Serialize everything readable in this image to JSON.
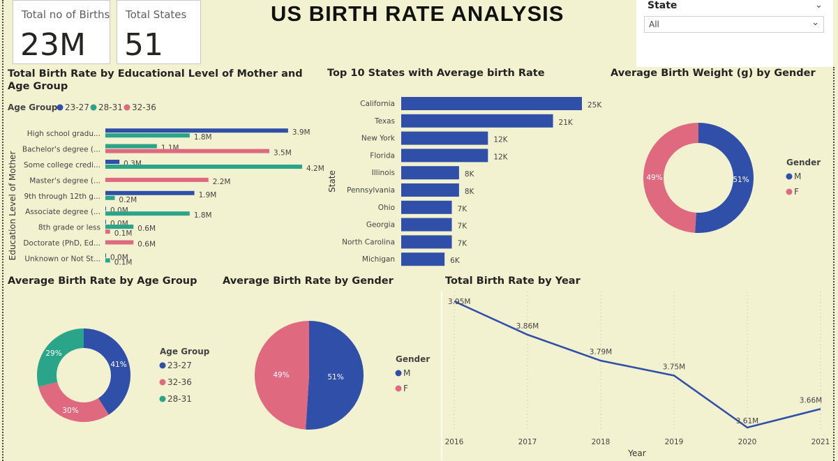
{
  "header": {
    "title": "US BIRTH RATE ANALYSIS"
  },
  "cards": [
    {
      "label": "Total no of Births",
      "value": "23M"
    },
    {
      "label": "Total States",
      "value": "51"
    }
  ],
  "slicer": {
    "title": "State",
    "value": "All"
  },
  "colors": {
    "blue": "#2f4fa8",
    "teal": "#2aa58a",
    "pink": "#df6a80",
    "bg": "#f2f2d0"
  },
  "chart_data": [
    {
      "id": "edu",
      "type": "bar",
      "orientation": "horizontal",
      "title": "Total Birth Rate by Educational Level of Mother and Age Group",
      "title_lines": [
        "Total Birth Rate by Educational Level of Mother and",
        "Age Group"
      ],
      "ylabel": "Education Level of Mother",
      "legend_title": "Age Group",
      "legend": [
        "23-27",
        "28-31",
        "32-36"
      ],
      "categories": [
        "High school gradu...",
        "Bachelor's degree (...",
        "Some college credi...",
        "Master's degree (...",
        "9th through 12th g...",
        "Associate degree (...",
        "8th grade or less",
        "Doctorate (PhD, Ed...",
        "Unknown or Not St..."
      ],
      "series": [
        {
          "name": "23-27",
          "values": [
            3.9,
            0,
            0.3,
            0,
            1.9,
            0.0,
            0.0,
            0,
            0.0
          ],
          "labels": [
            "3.9M",
            "",
            "0.3M",
            "",
            "1.9M",
            "0.0M",
            "0.0M",
            "",
            "0.0M"
          ]
        },
        {
          "name": "28-31",
          "values": [
            1.8,
            1.1,
            4.2,
            0,
            0.2,
            1.8,
            0.6,
            0,
            0.1
          ],
          "labels": [
            "1.8M",
            "1.1M",
            "4.2M",
            "",
            "0.2M",
            "1.8M",
            "0.6M",
            "",
            "0.1M"
          ]
        },
        {
          "name": "32-36",
          "values": [
            0,
            3.5,
            0,
            2.2,
            0,
            0,
            0.1,
            0.6,
            0
          ],
          "labels": [
            "",
            "3.5M",
            "",
            "2.2M",
            "",
            "",
            "0.1M",
            "0.6M",
            ""
          ]
        }
      ],
      "xlim": [
        0,
        4.2
      ]
    },
    {
      "id": "states",
      "type": "bar",
      "orientation": "horizontal",
      "title": "Top 10 States with Average birth Rate",
      "ylabel": "State",
      "categories": [
        "California",
        "Texas",
        "New York",
        "Florida",
        "Illinois",
        "Pennsylvania",
        "Ohio",
        "Georgia",
        "North Carolina",
        "Michigan"
      ],
      "values": [
        25,
        21,
        12,
        12,
        8,
        8,
        7,
        7,
        7,
        6
      ],
      "labels": [
        "25K",
        "21K",
        "12K",
        "12K",
        "8K",
        "8K",
        "7K",
        "7K",
        "7K",
        "6K"
      ],
      "xlim": [
        0,
        25
      ]
    },
    {
      "id": "weight",
      "type": "pie",
      "donut": true,
      "title": "Average Birth Weight (g) by Gender",
      "legend_title": "Gender",
      "categories": [
        "M",
        "F"
      ],
      "values": [
        51,
        49
      ],
      "labels": [
        "51%",
        "49%"
      ]
    },
    {
      "id": "age",
      "type": "pie",
      "donut": true,
      "title": "Average Birth Rate by Age Group",
      "legend_title": "Age Group",
      "categories": [
        "23-27",
        "32-36",
        "28-31"
      ],
      "values": [
        41,
        30,
        29
      ],
      "labels": [
        "41%",
        "30%",
        "29%"
      ]
    },
    {
      "id": "gender",
      "type": "pie",
      "donut": false,
      "title": "Average Birth Rate by Gender",
      "legend_title": "Gender",
      "categories": [
        "M",
        "F"
      ],
      "values": [
        51,
        49
      ],
      "labels": [
        "51%",
        "49%"
      ]
    },
    {
      "id": "year",
      "type": "line",
      "title": "Total Birth Rate by Year",
      "xlabel": "Year",
      "x": [
        "2016",
        "2017",
        "2018",
        "2019",
        "2020",
        "2021"
      ],
      "values": [
        3.95,
        3.86,
        3.79,
        3.75,
        3.61,
        3.66
      ],
      "labels": [
        "3.95M",
        "3.86M",
        "3.79M",
        "3.75M",
        "3.61M",
        "3.66M"
      ],
      "ylim": [
        3.61,
        3.95
      ]
    }
  ]
}
